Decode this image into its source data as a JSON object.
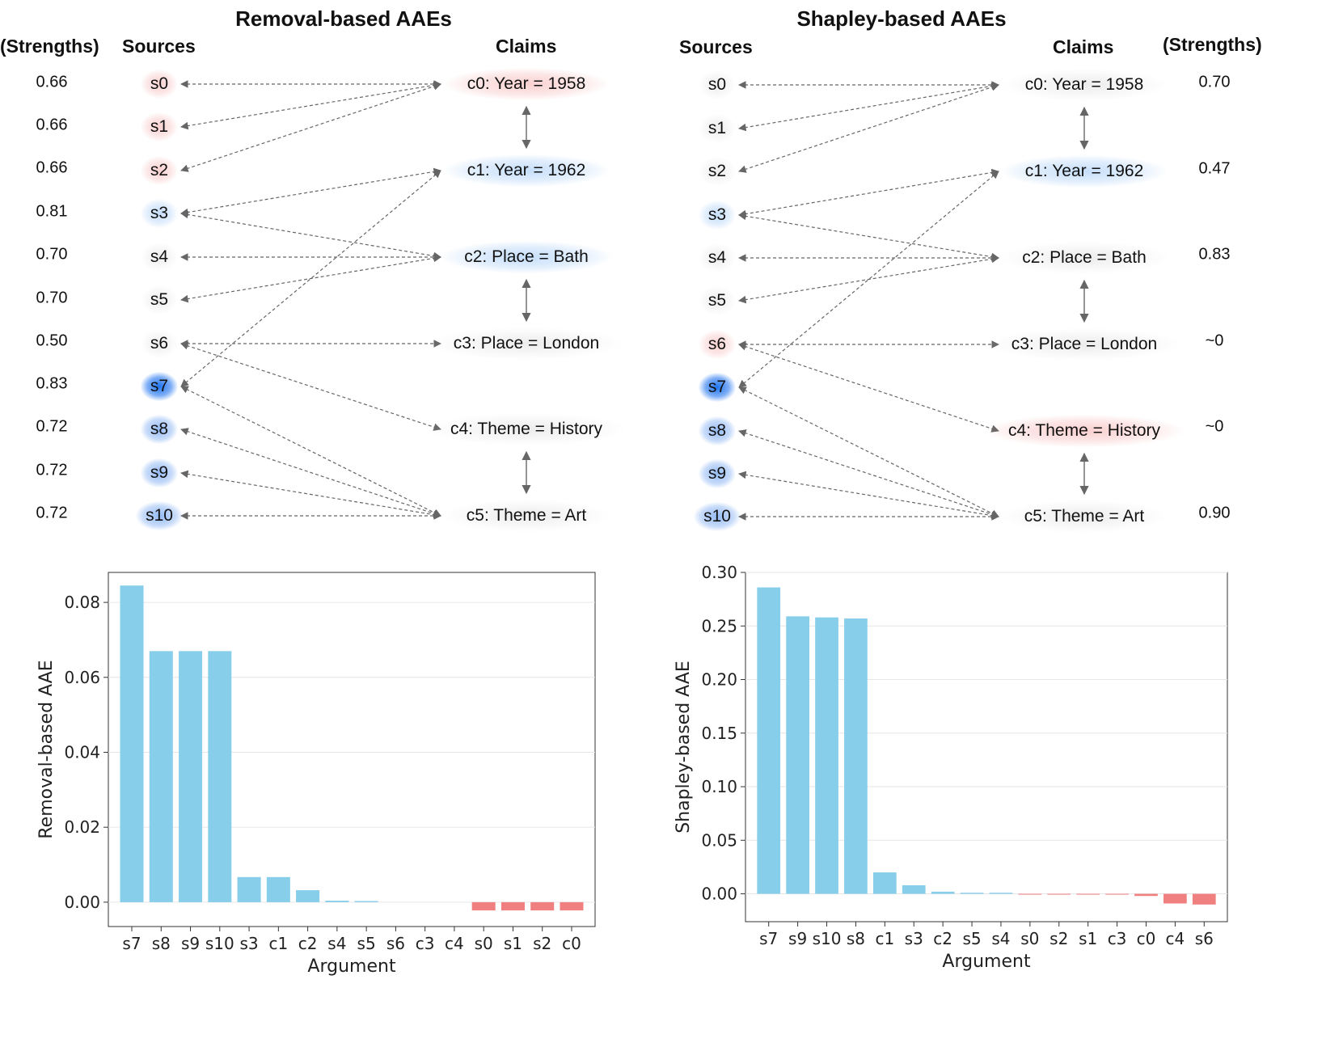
{
  "left_panel": {
    "title": "Removal-based AAEs",
    "strengths_header": "(Strengths)",
    "sources_header": "Sources",
    "claims_header": "Claims"
  },
  "right_panel": {
    "title": "Shapley-based AAEs",
    "strengths_header": "(Strengths)",
    "sources_header": "Sources",
    "claims_header": "Claims"
  },
  "sources": [
    "s0",
    "s1",
    "s2",
    "s3",
    "s4",
    "s5",
    "s6",
    "s7",
    "s8",
    "s9",
    "s10"
  ],
  "claims": [
    "c0: Year = 1958",
    "c1: Year = 1962",
    "c2: Place = Bath",
    "c3: Place = London",
    "c4: Theme = History",
    "c5: Theme = Art"
  ],
  "left_source_strengths": [
    "0.66",
    "0.66",
    "0.66",
    "0.81",
    "0.70",
    "0.70",
    "0.50",
    "0.83",
    "0.72",
    "0.72",
    "0.72"
  ],
  "right_claim_strengths": [
    "0.70",
    "0.47",
    "0.83",
    "~0",
    "~0",
    "0.90"
  ],
  "colors": {
    "bar_positive": "#87ceeb",
    "bar_negative": "#f08080",
    "arrow": "#666666"
  },
  "chart_data": [
    {
      "type": "bar",
      "title": "",
      "xlabel": "Argument",
      "ylabel": "Removal-based AAE",
      "categories": [
        "s7",
        "s8",
        "s9",
        "s10",
        "s3",
        "c1",
        "c2",
        "s4",
        "s5",
        "s6",
        "c3",
        "c4",
        "s0",
        "s1",
        "s2",
        "c0"
      ],
      "values": [
        0.0845,
        0.067,
        0.067,
        0.067,
        0.0067,
        0.0067,
        0.0032,
        0.0004,
        0.0003,
        0.0,
        0.0,
        0.0,
        -0.0022,
        -0.0022,
        -0.0022,
        -0.0022
      ],
      "ylim": [
        -0.0065,
        0.088
      ],
      "yticks": [
        0.0,
        0.02,
        0.04,
        0.06,
        0.08
      ],
      "ytick_labels": [
        "0.00",
        "0.02",
        "0.04",
        "0.06",
        "0.08"
      ]
    },
    {
      "type": "bar",
      "title": "",
      "xlabel": "Argument",
      "ylabel": "Shapley-based AAE",
      "categories": [
        "s7",
        "s9",
        "s10",
        "s8",
        "c1",
        "s3",
        "c2",
        "s5",
        "s4",
        "s0",
        "s2",
        "s1",
        "c3",
        "c0",
        "c4",
        "s6"
      ],
      "values": [
        0.286,
        0.259,
        0.258,
        0.257,
        0.02,
        0.008,
        0.002,
        0.001,
        0.001,
        -0.0003,
        -0.0003,
        -0.0003,
        -0.0003,
        -0.002,
        -0.009,
        -0.01
      ],
      "ylim": [
        -0.026,
        0.3
      ],
      "yticks": [
        0.0,
        0.05,
        0.1,
        0.15,
        0.2,
        0.25,
        0.3
      ],
      "ytick_labels": [
        "0.00",
        "0.05",
        "0.10",
        "0.15",
        "0.20",
        "0.25",
        "0.30"
      ]
    }
  ]
}
